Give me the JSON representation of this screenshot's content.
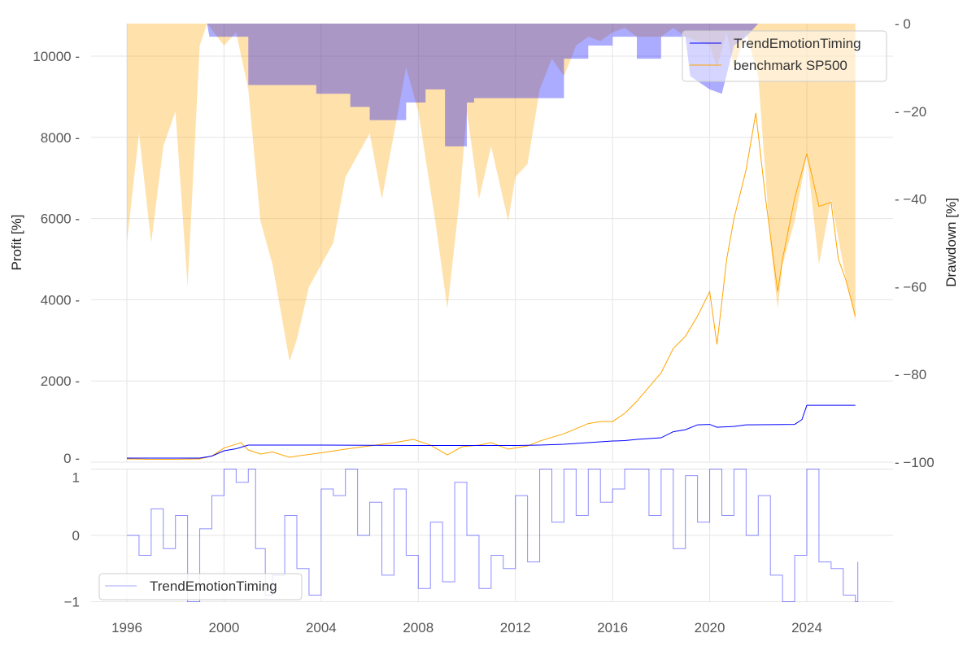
{
  "chart_data": [
    {
      "type": "line",
      "panel": "top",
      "ylabel": "Profit [%]",
      "y2label": "Drawdown [%]",
      "xlim": [
        1994.5,
        2027.5
      ],
      "ylim": [
        0,
        10800
      ],
      "y2lim": [
        -100,
        0
      ],
      "xticks": [
        "1996",
        "2000",
        "2004",
        "2008",
        "2012",
        "2016",
        "2020",
        "2024"
      ],
      "yticks": [
        "0",
        "2000",
        "4000",
        "6000",
        "8000",
        "10000"
      ],
      "y2ticks": [
        "0",
        "−20",
        "−40",
        "−60",
        "−80",
        "−100"
      ],
      "grid": true,
      "legend": {
        "position": "top-right",
        "entries": [
          "TrendEmotionTiming",
          "benchmark SP500"
        ]
      },
      "colors": {
        "strategy": "#0000ff",
        "benchmark": "#ffa500",
        "strategy_dd": "#0000ff",
        "benchmark_dd": "#ffa500"
      },
      "series": [
        {
          "name": "TrendEmotionTiming",
          "points": [
            [
              1996,
              100
            ],
            [
              1999,
              100
            ],
            [
              1999.5,
              150
            ],
            [
              2000,
              280
            ],
            [
              2000.5,
              330
            ],
            [
              2001,
              420
            ],
            [
              2004,
              420
            ],
            [
              2008,
              410
            ],
            [
              2012,
              410
            ],
            [
              2013,
              420
            ],
            [
              2014,
              440
            ],
            [
              2015,
              480
            ],
            [
              2016,
              520
            ],
            [
              2016.5,
              530
            ],
            [
              2017,
              560
            ],
            [
              2018,
              600
            ],
            [
              2018.5,
              750
            ],
            [
              2019,
              800
            ],
            [
              2019.5,
              920
            ],
            [
              2020,
              930
            ],
            [
              2020.3,
              860
            ],
            [
              2021,
              880
            ],
            [
              2021.5,
              920
            ],
            [
              2023.5,
              930
            ],
            [
              2023.8,
              1050
            ],
            [
              2024,
              1400
            ],
            [
              2026,
              1400
            ]
          ]
        },
        {
          "name": "benchmark SP500",
          "points": [
            [
              1996,
              80
            ],
            [
              1997,
              70
            ],
            [
              1998,
              70
            ],
            [
              1999,
              80
            ],
            [
              1999.5,
              150
            ],
            [
              2000,
              350
            ],
            [
              2000.7,
              480
            ],
            [
              2001,
              300
            ],
            [
              2001.5,
              200
            ],
            [
              2002,
              250
            ],
            [
              2002.7,
              120
            ],
            [
              2003,
              150
            ],
            [
              2004,
              230
            ],
            [
              2005,
              320
            ],
            [
              2006,
              400
            ],
            [
              2007,
              480
            ],
            [
              2007.8,
              560
            ],
            [
              2008.5,
              420
            ],
            [
              2009.2,
              180
            ],
            [
              2009.8,
              380
            ],
            [
              2010.5,
              420
            ],
            [
              2011,
              480
            ],
            [
              2011.7,
              320
            ],
            [
              2012.5,
              400
            ],
            [
              2013,
              520
            ],
            [
              2014,
              700
            ],
            [
              2015,
              950
            ],
            [
              2015.5,
              1000
            ],
            [
              2016,
              1000
            ],
            [
              2016.5,
              1200
            ],
            [
              2017,
              1500
            ],
            [
              2018,
              2200
            ],
            [
              2018.5,
              2800
            ],
            [
              2019,
              3100
            ],
            [
              2019.5,
              3600
            ],
            [
              2020,
              4200
            ],
            [
              2020.3,
              2900
            ],
            [
              2020.7,
              5000
            ],
            [
              2021,
              6000
            ],
            [
              2021.5,
              7200
            ],
            [
              2021.9,
              8600
            ],
            [
              2022.3,
              6500
            ],
            [
              2022.8,
              4200
            ],
            [
              2023,
              5000
            ],
            [
              2023.5,
              6500
            ],
            [
              2024,
              7600
            ],
            [
              2024.5,
              6300
            ],
            [
              2025,
              6400
            ],
            [
              2025.3,
              5000
            ],
            [
              2025.6,
              4500
            ],
            [
              2026,
              3600
            ]
          ]
        }
      ],
      "drawdowns": [
        {
          "of": "benchmark SP500",
          "points": [
            [
              1996,
              -50
            ],
            [
              1996.5,
              -25
            ],
            [
              1997,
              -50
            ],
            [
              1997.5,
              -28
            ],
            [
              1998,
              -20
            ],
            [
              1998.5,
              -60
            ],
            [
              1999,
              -5
            ],
            [
              1999.3,
              0
            ],
            [
              2000,
              -5
            ],
            [
              2000.5,
              -2
            ],
            [
              2001,
              -15
            ],
            [
              2001.5,
              -45
            ],
            [
              2002,
              -55
            ],
            [
              2002.7,
              -77
            ],
            [
              2003,
              -72
            ],
            [
              2003.5,
              -60
            ],
            [
              2004,
              -55
            ],
            [
              2004.5,
              -50
            ],
            [
              2005,
              -35
            ],
            [
              2005.5,
              -30
            ],
            [
              2006,
              -25
            ],
            [
              2006.5,
              -40
            ],
            [
              2007,
              -25
            ],
            [
              2007.5,
              -10
            ],
            [
              2008,
              -20
            ],
            [
              2008.7,
              -45
            ],
            [
              2009.2,
              -65
            ],
            [
              2009.7,
              -40
            ],
            [
              2010,
              -20
            ],
            [
              2010.5,
              -40
            ],
            [
              2011,
              -28
            ],
            [
              2011.7,
              -45
            ],
            [
              2012,
              -35
            ],
            [
              2012.5,
              -32
            ],
            [
              2013,
              -15
            ],
            [
              2013.5,
              -8
            ],
            [
              2014,
              -12
            ],
            [
              2014.5,
              -5
            ],
            [
              2015,
              -3
            ],
            [
              2015.5,
              -4
            ],
            [
              2016,
              -2
            ],
            [
              2016.5,
              -1
            ],
            [
              2017,
              -3
            ],
            [
              2018,
              -3
            ],
            [
              2018.5,
              -1
            ],
            [
              2019,
              -3
            ],
            [
              2020,
              -5
            ],
            [
              2020.3,
              -10
            ],
            [
              2020.7,
              -2
            ],
            [
              2021,
              -10
            ],
            [
              2021.5,
              -2
            ],
            [
              2022,
              -12
            ],
            [
              2022.5,
              -50
            ],
            [
              2022.8,
              -65
            ],
            [
              2023,
              -55
            ],
            [
              2023.5,
              -45
            ],
            [
              2024,
              -30
            ],
            [
              2024.5,
              -55
            ],
            [
              2025,
              -40
            ],
            [
              2025.5,
              -55
            ],
            [
              2026,
              -68
            ]
          ]
        },
        {
          "of": "TrendEmotionTiming",
          "points": [
            [
              1996,
              0
            ],
            [
              1999.3,
              0
            ],
            [
              1999.4,
              -3
            ],
            [
              2001,
              -3
            ],
            [
              2001,
              -14
            ],
            [
              2003.8,
              -14
            ],
            [
              2003.8,
              -16
            ],
            [
              2005.2,
              -16
            ],
            [
              2005.2,
              -19
            ],
            [
              2006,
              -19
            ],
            [
              2006,
              -22
            ],
            [
              2007.5,
              -22
            ],
            [
              2007.5,
              -18
            ],
            [
              2008.3,
              -18
            ],
            [
              2008.3,
              -15
            ],
            [
              2009.1,
              -15
            ],
            [
              2009.1,
              -28
            ],
            [
              2010,
              -28
            ],
            [
              2010,
              -18
            ],
            [
              2010.3,
              -18
            ],
            [
              2010.3,
              -17
            ],
            [
              2014,
              -17
            ],
            [
              2014,
              -8
            ],
            [
              2015,
              -8
            ],
            [
              2015,
              -5
            ],
            [
              2016,
              -5
            ],
            [
              2016,
              -3
            ],
            [
              2017,
              -3
            ],
            [
              2017,
              -8
            ],
            [
              2018,
              -8
            ],
            [
              2018,
              -3
            ],
            [
              2019,
              -3
            ],
            [
              2019.2,
              -12
            ],
            [
              2020,
              -15
            ],
            [
              2020.5,
              -16
            ],
            [
              2021,
              -5
            ],
            [
              2021.5,
              -3
            ],
            [
              2022,
              0
            ],
            [
              2026,
              0
            ]
          ]
        }
      ]
    },
    {
      "type": "line",
      "panel": "bottom",
      "ylim": [
        -1,
        1
      ],
      "yticks": [
        "1",
        "0",
        "−1"
      ],
      "grid": true,
      "legend": {
        "position": "bottom-left",
        "entries": [
          "TrendEmotionTiming"
        ]
      },
      "series": [
        {
          "name": "TrendEmotionTiming",
          "points": [
            [
              1996,
              0
            ],
            [
              1996.5,
              -0.3
            ],
            [
              1997,
              0.4
            ],
            [
              1997.5,
              -0.2
            ],
            [
              1998,
              0.3
            ],
            [
              1998.5,
              -1
            ],
            [
              1999,
              0.1
            ],
            [
              1999.5,
              0.6
            ],
            [
              2000,
              1
            ],
            [
              2000.5,
              0.8
            ],
            [
              2001,
              1
            ],
            [
              2001.3,
              -0.2
            ],
            [
              2001.7,
              -0.9
            ],
            [
              2002,
              -0.6
            ],
            [
              2002.5,
              0.3
            ],
            [
              2003,
              -0.5
            ],
            [
              2003.5,
              -0.9
            ],
            [
              2004,
              0.7
            ],
            [
              2004.5,
              0.6
            ],
            [
              2005,
              1
            ],
            [
              2005.5,
              0
            ],
            [
              2006,
              0.5
            ],
            [
              2006.5,
              -0.6
            ],
            [
              2007,
              0.7
            ],
            [
              2007.5,
              -0.3
            ],
            [
              2008,
              -0.8
            ],
            [
              2008.5,
              0.2
            ],
            [
              2009,
              -0.7
            ],
            [
              2009.5,
              0.8
            ],
            [
              2010,
              0
            ],
            [
              2010.5,
              -0.8
            ],
            [
              2011,
              -0.3
            ],
            [
              2011.5,
              -0.5
            ],
            [
              2012,
              0.6
            ],
            [
              2012.5,
              -0.4
            ],
            [
              2013,
              1
            ],
            [
              2013.5,
              0.2
            ],
            [
              2014,
              1
            ],
            [
              2014.5,
              0.3
            ],
            [
              2015,
              1
            ],
            [
              2015.5,
              0.5
            ],
            [
              2016,
              0.7
            ],
            [
              2016.5,
              1
            ],
            [
              2017,
              1
            ],
            [
              2017.5,
              0.3
            ],
            [
              2018,
              1
            ],
            [
              2018.5,
              -0.2
            ],
            [
              2019,
              0.9
            ],
            [
              2019.5,
              0.2
            ],
            [
              2020,
              1
            ],
            [
              2020.5,
              0.3
            ],
            [
              2021,
              1
            ],
            [
              2021.5,
              0
            ],
            [
              2022,
              0.6
            ],
            [
              2022.5,
              -0.6
            ],
            [
              2023,
              -1
            ],
            [
              2023.5,
              -0.3
            ],
            [
              2024,
              1
            ],
            [
              2024.5,
              -0.4
            ],
            [
              2025,
              -0.5
            ],
            [
              2025.5,
              -0.9
            ],
            [
              2026,
              -1
            ],
            [
              2026.1,
              -0.4
            ]
          ]
        }
      ]
    }
  ]
}
